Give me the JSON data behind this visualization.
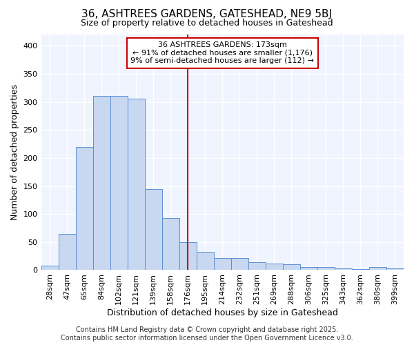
{
  "title": "36, ASHTREES GARDENS, GATESHEAD, NE9 5BJ",
  "subtitle": "Size of property relative to detached houses in Gateshead",
  "xlabel": "Distribution of detached houses by size in Gateshead",
  "ylabel": "Number of detached properties",
  "categories": [
    "28sqm",
    "47sqm",
    "65sqm",
    "84sqm",
    "102sqm",
    "121sqm",
    "139sqm",
    "158sqm",
    "176sqm",
    "195sqm",
    "214sqm",
    "232sqm",
    "251sqm",
    "269sqm",
    "288sqm",
    "306sqm",
    "325sqm",
    "343sqm",
    "362sqm",
    "380sqm",
    "399sqm"
  ],
  "values": [
    8,
    65,
    220,
    310,
    310,
    305,
    145,
    93,
    50,
    33,
    21,
    21,
    14,
    12,
    11,
    5,
    5,
    3,
    2,
    5,
    3
  ],
  "bar_color": "#c8d8f0",
  "bar_edge_color": "#5b8fd4",
  "vline_x": 8,
  "vline_color": "#cc0000",
  "annotation_text": "36 ASHTREES GARDENS: 173sqm\n← 91% of detached houses are smaller (1,176)\n9% of semi-detached houses are larger (112) →",
  "annotation_box_color": "#ffffff",
  "annotation_box_edge": "#cc0000",
  "ylim": [
    0,
    420
  ],
  "footer1": "Contains HM Land Registry data © Crown copyright and database right 2025.",
  "footer2": "Contains public sector information licensed under the Open Government Licence v3.0.",
  "bg_color": "#ffffff",
  "plot_bg_color": "#f0f4ff",
  "title_fontsize": 11,
  "subtitle_fontsize": 9,
  "tick_fontsize": 8,
  "ylabel_fontsize": 9,
  "xlabel_fontsize": 9,
  "footer_fontsize": 7,
  "annotation_fontsize": 8
}
